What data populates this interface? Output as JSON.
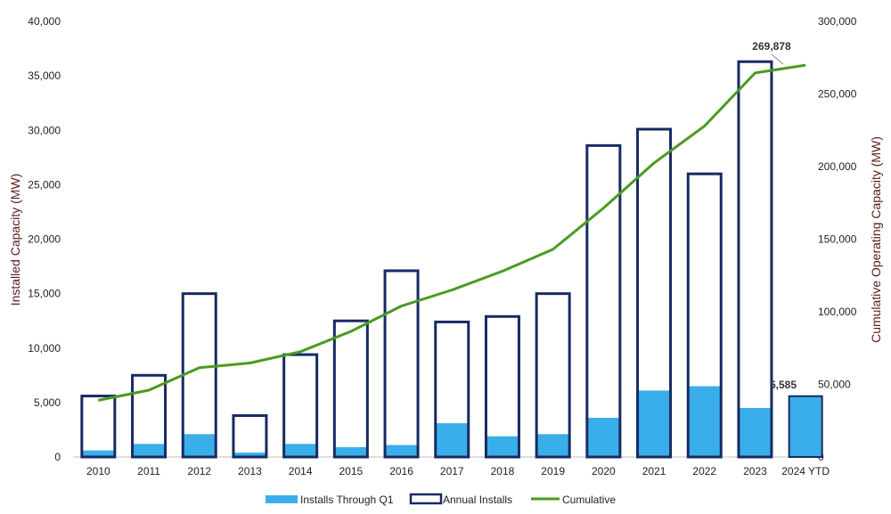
{
  "chart_data": {
    "type": "bar",
    "categories": [
      "2010",
      "2011",
      "2012",
      "2013",
      "2014",
      "2015",
      "2016",
      "2017",
      "2018",
      "2019",
      "2020",
      "2021",
      "2022",
      "2023",
      "2024 YTD"
    ],
    "series": [
      {
        "name": "Installs Through Q1",
        "axis": "left",
        "kind": "bar-filled",
        "values": [
          600,
          1200,
          2100,
          400,
          1200,
          900,
          1100,
          3100,
          1900,
          2100,
          3600,
          6100,
          6500,
          4500,
          5585
        ]
      },
      {
        "name": "Annual Installs",
        "axis": "left",
        "kind": "bar-outline",
        "values": [
          5600,
          7500,
          15000,
          3800,
          9400,
          12500,
          17100,
          12400,
          12900,
          15000,
          28600,
          30100,
          26000,
          36300,
          5585
        ]
      },
      {
        "name": "Cumulative",
        "axis": "right",
        "kind": "line",
        "values": [
          39000,
          46000,
          61500,
          64700,
          72500,
          86500,
          104000,
          115000,
          128000,
          143000,
          171500,
          202500,
          228000,
          264500,
          269878
        ]
      }
    ],
    "title": "",
    "ylabel": "Installed Capacity (MW)",
    "y2label": "Cumulative Operating Capacity (MW)",
    "ylim": [
      0,
      40000
    ],
    "y2lim": [
      0,
      300000
    ],
    "yticks": [
      "0",
      "5,000",
      "10,000",
      "15,000",
      "20,000",
      "25,000",
      "30,000",
      "35,000",
      "40,000"
    ],
    "y2ticks": [
      "0",
      "50,000",
      "100,000",
      "150,000",
      "200,000",
      "250,000",
      "300,000"
    ],
    "annotations": {
      "last_bar_label": "5,585",
      "last_cumulative_label": "269,878"
    },
    "legend": {
      "position": "bottom",
      "entries": [
        "Installs Through Q1",
        "Annual Installs",
        "Cumulative"
      ]
    },
    "colors": {
      "filled": "#3aaeea",
      "outline": "#172b63",
      "line": "#4a9b1e",
      "axis_title": "#5a1a1a"
    }
  }
}
